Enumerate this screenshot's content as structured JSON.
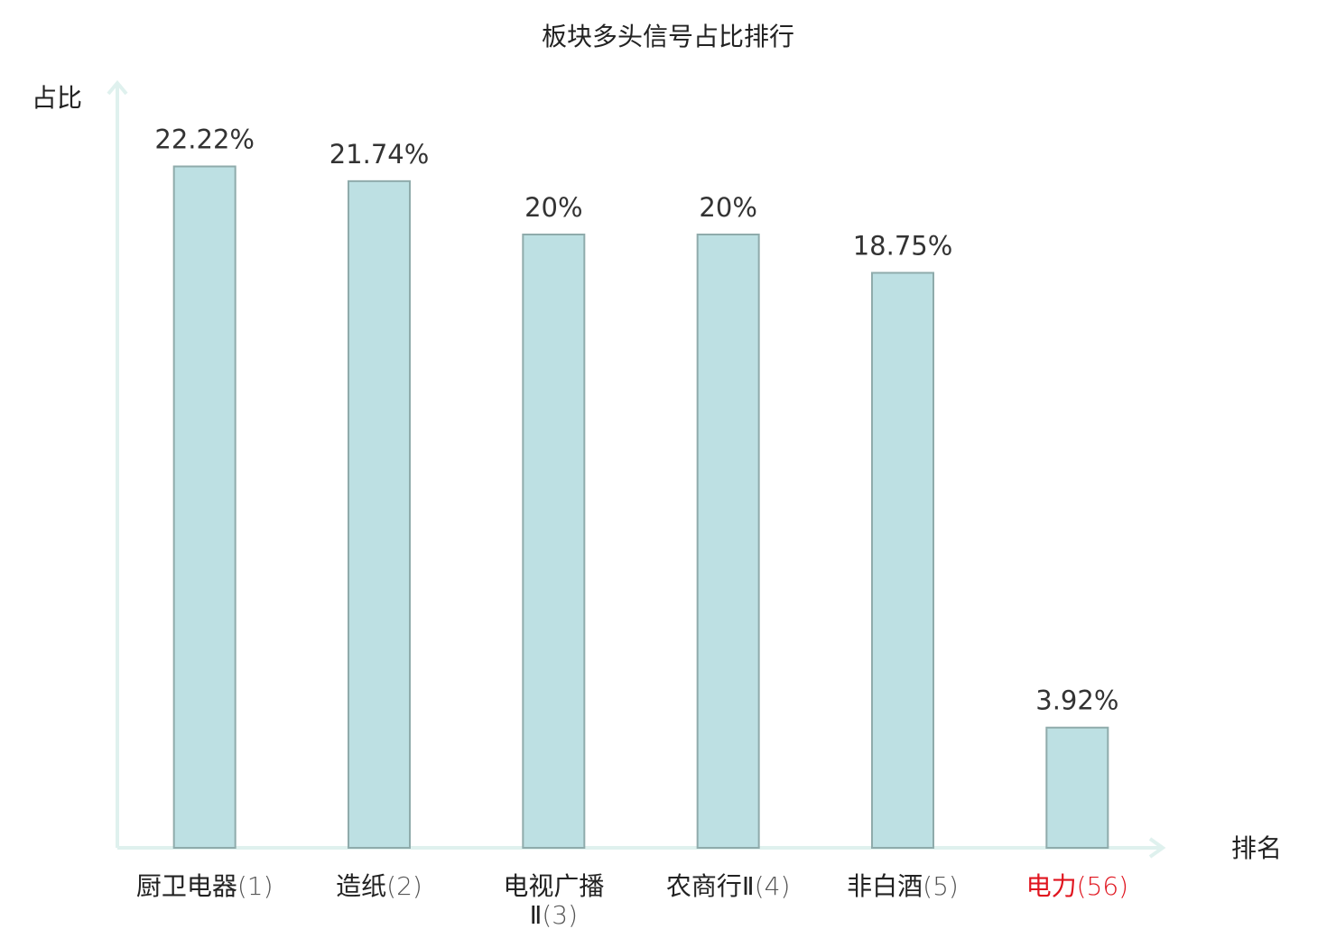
{
  "chart_data": {
    "type": "bar",
    "title": "板块多头信号占比排行",
    "y_label": "占比",
    "x_label": "排名",
    "categories": [
      "厨卫电器",
      "造纸",
      "电视广播Ⅱ",
      "农商行Ⅱ",
      "非白酒",
      "电力"
    ],
    "ranks": [
      "(1)",
      "(2)",
      "(3)",
      "(4)",
      "(5)",
      "(56)"
    ],
    "category_colors": [
      "#222222",
      "#222222",
      "#222222",
      "#222222",
      "#222222",
      "#e0141e"
    ],
    "values": [
      22.22,
      21.74,
      20,
      20,
      18.75,
      3.92
    ],
    "value_labels": [
      "22.22%",
      "21.74%",
      "20%",
      "20%",
      "18.75%",
      "3.92%"
    ],
    "color": "#bde0e3",
    "ylim": [
      0,
      25
    ]
  }
}
